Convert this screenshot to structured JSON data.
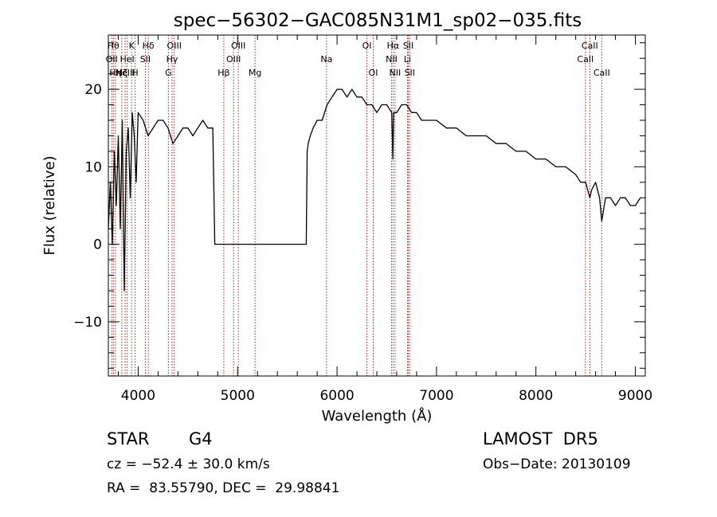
{
  "chart_data": {
    "type": "line",
    "title": "spec−56302−GAC085N31M1_sp02−035.fits",
    "xlabel": "Wavelength (Å)",
    "ylabel": "Flux (relative)",
    "xlim": [
      3700,
      9100
    ],
    "ylim": [
      -17,
      27
    ],
    "xticks": [
      4000,
      5000,
      6000,
      7000,
      8000,
      9000
    ],
    "yticks": [
      -10,
      0,
      10,
      20
    ],
    "xtick_labels": [
      "4000",
      "5000",
      "6000",
      "7000",
      "8000",
      "9000"
    ],
    "ytick_labels": [
      "−10",
      "0",
      "10",
      "20"
    ],
    "grid": false,
    "series": [
      {
        "x": [
          3700,
          3720,
          3740,
          3760,
          3780,
          3800,
          3820,
          3840,
          3860,
          3880,
          3900,
          3920,
          3940,
          3960,
          3980,
          4000,
          4050,
          4100,
          4150,
          4200,
          4250,
          4300,
          4350,
          4400,
          4450,
          4500,
          4550,
          4600,
          4650,
          4700,
          4750,
          4760,
          4770,
          4780,
          5690,
          5700,
          5710,
          5730,
          5760,
          5800,
          5850,
          5900,
          5950,
          6000,
          6050,
          6100,
          6150,
          6200,
          6250,
          6300,
          6350,
          6400,
          6450,
          6500,
          6550,
          6562,
          6570,
          6600,
          6650,
          6700,
          6750,
          6800,
          6850,
          6900,
          6950,
          7000,
          7100,
          7200,
          7300,
          7400,
          7500,
          7600,
          7700,
          7800,
          7900,
          8000,
          8100,
          8200,
          8300,
          8400,
          8450,
          8500,
          8542,
          8560,
          8600,
          8640,
          8662,
          8700,
          8750,
          8800,
          8850,
          8900,
          8950,
          9000,
          9050
        ],
        "y": [
          2,
          8,
          0,
          12,
          5,
          14,
          2,
          16,
          -6,
          12,
          15,
          6,
          17,
          14,
          8,
          17,
          16,
          14,
          15,
          16,
          16,
          15,
          13,
          14,
          15,
          15,
          14,
          15,
          16,
          15,
          15,
          8,
          0,
          0,
          0,
          12,
          13,
          14,
          15,
          16,
          16,
          18,
          19,
          20,
          20,
          19,
          20,
          19,
          19,
          18,
          18,
          17,
          18,
          18,
          17,
          11,
          17,
          17,
          18,
          18,
          17,
          17,
          16,
          16,
          16,
          16,
          15,
          15,
          14,
          14,
          14,
          13,
          13,
          12,
          12,
          11,
          11,
          10,
          10,
          9,
          8,
          8,
          6,
          7,
          8,
          6,
          3,
          6,
          6,
          5,
          6,
          6,
          5,
          5,
          6
        ]
      }
    ],
    "lines": [
      {
        "x": 3734,
        "label": "OII",
        "row": 1
      },
      {
        "x": 3750,
        "label": "Hθ",
        "row": 0
      },
      {
        "x": 3771,
        "label": "Hη",
        "row": 2
      },
      {
        "x": 3835,
        "label": "Hζ",
        "row": 2
      },
      {
        "x": 3869,
        "label": "NeIII",
        "row": 2
      },
      {
        "x": 3889,
        "label": "HeI",
        "row": 1
      },
      {
        "x": 3934,
        "label": "K",
        "row": 0
      },
      {
        "x": 3969,
        "label": "H",
        "row": 2
      },
      {
        "x": 4072,
        "label": "SII",
        "row": 1
      },
      {
        "x": 4102,
        "label": "Hδ",
        "row": 0
      },
      {
        "x": 4304,
        "label": "G",
        "row": 2
      },
      {
        "x": 4341,
        "label": "Hγ",
        "row": 1
      },
      {
        "x": 4363,
        "label": "OIII",
        "row": 0
      },
      {
        "x": 4861,
        "label": "Hβ",
        "row": 2
      },
      {
        "x": 4959,
        "label": "OIII",
        "row": 1
      },
      {
        "x": 5007,
        "label": "OIII",
        "row": 0
      },
      {
        "x": 5175,
        "label": "Mg",
        "row": 2
      },
      {
        "x": 5894,
        "label": "Na",
        "row": 1
      },
      {
        "x": 6300,
        "label": "OI",
        "row": 0
      },
      {
        "x": 6364,
        "label": "OI",
        "row": 2
      },
      {
        "x": 6548,
        "label": "NII",
        "row": 1
      },
      {
        "x": 6563,
        "label": "Hα",
        "row": 0
      },
      {
        "x": 6583,
        "label": "NII",
        "row": 2
      },
      {
        "x": 6708,
        "label": "Li",
        "row": 1
      },
      {
        "x": 6716,
        "label": "SII",
        "row": 0
      },
      {
        "x": 6731,
        "label": "SII",
        "row": 2
      },
      {
        "x": 8498,
        "label": "CaII",
        "row": 1
      },
      {
        "x": 8542,
        "label": "CaII",
        "row": 0
      },
      {
        "x": 8662,
        "label": "CaII",
        "row": 2
      }
    ]
  },
  "info": {
    "class": "STAR",
    "subclass": "G4",
    "survey": "LAMOST  DR5",
    "cz": "cz = −52.4 ± 30.0 km/s",
    "obs_date": "Obs−Date: 20130109",
    "coords": "RA =  83.55790, DEC =  29.98841"
  },
  "colors": {
    "spectrum": "#000000",
    "line_markers": "#b22222",
    "background": "#ffffff"
  }
}
